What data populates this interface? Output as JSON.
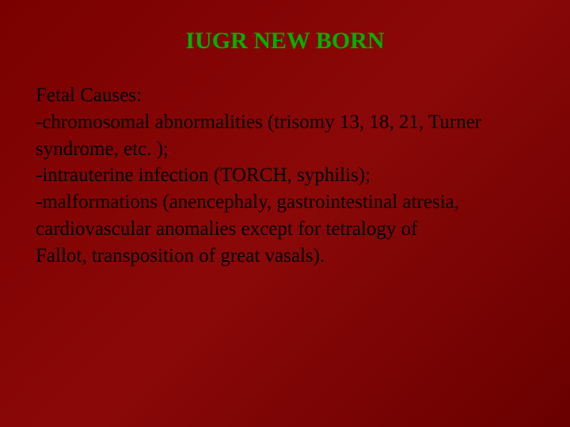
{
  "slide": {
    "title": "IUGR NEW BORN",
    "heading": "Fetal Causes:",
    "line1": "-chromosomal abnormalities (trisomy 13, 18, 21, Turner",
    "line2": "syndrome, etc. );",
    "line3": "-intrauterine infection (TORCH, syphilis);",
    "line4": "-malformations (anencephaly, gastrointestinal atresia,",
    "line5": "cardiovascular anomalies except for tetralogy of",
    "line6": "Fallot, transposition of great vasals).",
    "title_color": "#00b000",
    "text_color": "#000000",
    "background_gradient": [
      "#7a0000",
      "#8b0808",
      "#6a0000"
    ],
    "title_fontsize": 30,
    "body_fontsize": 25,
    "font_family": "Times New Roman"
  }
}
